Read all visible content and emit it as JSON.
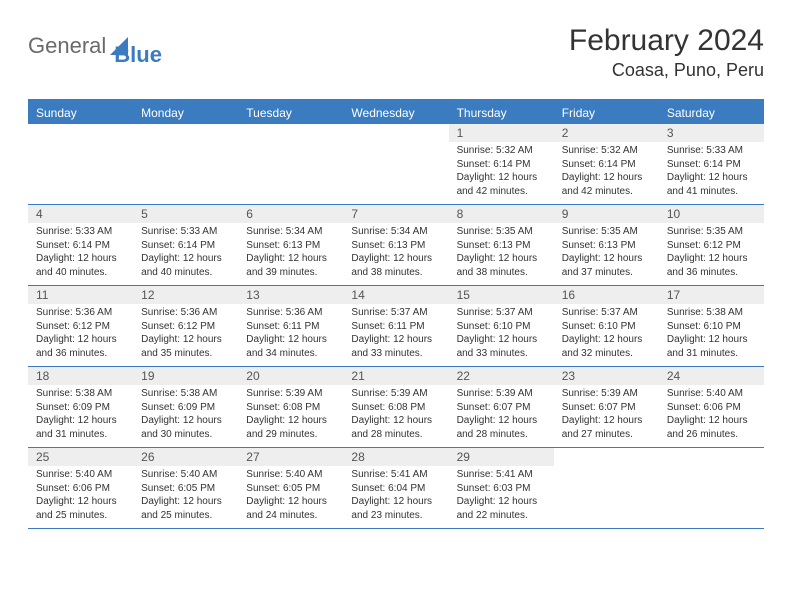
{
  "logo": {
    "part1": "General",
    "part2": "Blue"
  },
  "title": "February 2024",
  "location": "Coasa, Puno, Peru",
  "colors": {
    "accent": "#3b7bbf",
    "header_bg": "#3b7bbf",
    "header_text": "#ffffff",
    "daynum_bg": "#eeeeee",
    "text": "#333333",
    "logo_gray": "#6a6a6a"
  },
  "day_headers": [
    "Sunday",
    "Monday",
    "Tuesday",
    "Wednesday",
    "Thursday",
    "Friday",
    "Saturday"
  ],
  "weeks": [
    [
      {
        "n": "",
        "empty": true
      },
      {
        "n": "",
        "empty": true
      },
      {
        "n": "",
        "empty": true
      },
      {
        "n": "",
        "empty": true
      },
      {
        "n": "1",
        "sunrise": "Sunrise: 5:32 AM",
        "sunset": "Sunset: 6:14 PM",
        "day1": "Daylight: 12 hours",
        "day2": "and 42 minutes."
      },
      {
        "n": "2",
        "sunrise": "Sunrise: 5:32 AM",
        "sunset": "Sunset: 6:14 PM",
        "day1": "Daylight: 12 hours",
        "day2": "and 42 minutes."
      },
      {
        "n": "3",
        "sunrise": "Sunrise: 5:33 AM",
        "sunset": "Sunset: 6:14 PM",
        "day1": "Daylight: 12 hours",
        "day2": "and 41 minutes."
      }
    ],
    [
      {
        "n": "4",
        "sunrise": "Sunrise: 5:33 AM",
        "sunset": "Sunset: 6:14 PM",
        "day1": "Daylight: 12 hours",
        "day2": "and 40 minutes."
      },
      {
        "n": "5",
        "sunrise": "Sunrise: 5:33 AM",
        "sunset": "Sunset: 6:14 PM",
        "day1": "Daylight: 12 hours",
        "day2": "and 40 minutes."
      },
      {
        "n": "6",
        "sunrise": "Sunrise: 5:34 AM",
        "sunset": "Sunset: 6:13 PM",
        "day1": "Daylight: 12 hours",
        "day2": "and 39 minutes."
      },
      {
        "n": "7",
        "sunrise": "Sunrise: 5:34 AM",
        "sunset": "Sunset: 6:13 PM",
        "day1": "Daylight: 12 hours",
        "day2": "and 38 minutes."
      },
      {
        "n": "8",
        "sunrise": "Sunrise: 5:35 AM",
        "sunset": "Sunset: 6:13 PM",
        "day1": "Daylight: 12 hours",
        "day2": "and 38 minutes."
      },
      {
        "n": "9",
        "sunrise": "Sunrise: 5:35 AM",
        "sunset": "Sunset: 6:13 PM",
        "day1": "Daylight: 12 hours",
        "day2": "and 37 minutes."
      },
      {
        "n": "10",
        "sunrise": "Sunrise: 5:35 AM",
        "sunset": "Sunset: 6:12 PM",
        "day1": "Daylight: 12 hours",
        "day2": "and 36 minutes."
      }
    ],
    [
      {
        "n": "11",
        "sunrise": "Sunrise: 5:36 AM",
        "sunset": "Sunset: 6:12 PM",
        "day1": "Daylight: 12 hours",
        "day2": "and 36 minutes."
      },
      {
        "n": "12",
        "sunrise": "Sunrise: 5:36 AM",
        "sunset": "Sunset: 6:12 PM",
        "day1": "Daylight: 12 hours",
        "day2": "and 35 minutes."
      },
      {
        "n": "13",
        "sunrise": "Sunrise: 5:36 AM",
        "sunset": "Sunset: 6:11 PM",
        "day1": "Daylight: 12 hours",
        "day2": "and 34 minutes."
      },
      {
        "n": "14",
        "sunrise": "Sunrise: 5:37 AM",
        "sunset": "Sunset: 6:11 PM",
        "day1": "Daylight: 12 hours",
        "day2": "and 33 minutes."
      },
      {
        "n": "15",
        "sunrise": "Sunrise: 5:37 AM",
        "sunset": "Sunset: 6:10 PM",
        "day1": "Daylight: 12 hours",
        "day2": "and 33 minutes."
      },
      {
        "n": "16",
        "sunrise": "Sunrise: 5:37 AM",
        "sunset": "Sunset: 6:10 PM",
        "day1": "Daylight: 12 hours",
        "day2": "and 32 minutes."
      },
      {
        "n": "17",
        "sunrise": "Sunrise: 5:38 AM",
        "sunset": "Sunset: 6:10 PM",
        "day1": "Daylight: 12 hours",
        "day2": "and 31 minutes."
      }
    ],
    [
      {
        "n": "18",
        "sunrise": "Sunrise: 5:38 AM",
        "sunset": "Sunset: 6:09 PM",
        "day1": "Daylight: 12 hours",
        "day2": "and 31 minutes."
      },
      {
        "n": "19",
        "sunrise": "Sunrise: 5:38 AM",
        "sunset": "Sunset: 6:09 PM",
        "day1": "Daylight: 12 hours",
        "day2": "and 30 minutes."
      },
      {
        "n": "20",
        "sunrise": "Sunrise: 5:39 AM",
        "sunset": "Sunset: 6:08 PM",
        "day1": "Daylight: 12 hours",
        "day2": "and 29 minutes."
      },
      {
        "n": "21",
        "sunrise": "Sunrise: 5:39 AM",
        "sunset": "Sunset: 6:08 PM",
        "day1": "Daylight: 12 hours",
        "day2": "and 28 minutes."
      },
      {
        "n": "22",
        "sunrise": "Sunrise: 5:39 AM",
        "sunset": "Sunset: 6:07 PM",
        "day1": "Daylight: 12 hours",
        "day2": "and 28 minutes."
      },
      {
        "n": "23",
        "sunrise": "Sunrise: 5:39 AM",
        "sunset": "Sunset: 6:07 PM",
        "day1": "Daylight: 12 hours",
        "day2": "and 27 minutes."
      },
      {
        "n": "24",
        "sunrise": "Sunrise: 5:40 AM",
        "sunset": "Sunset: 6:06 PM",
        "day1": "Daylight: 12 hours",
        "day2": "and 26 minutes."
      }
    ],
    [
      {
        "n": "25",
        "sunrise": "Sunrise: 5:40 AM",
        "sunset": "Sunset: 6:06 PM",
        "day1": "Daylight: 12 hours",
        "day2": "and 25 minutes."
      },
      {
        "n": "26",
        "sunrise": "Sunrise: 5:40 AM",
        "sunset": "Sunset: 6:05 PM",
        "day1": "Daylight: 12 hours",
        "day2": "and 25 minutes."
      },
      {
        "n": "27",
        "sunrise": "Sunrise: 5:40 AM",
        "sunset": "Sunset: 6:05 PM",
        "day1": "Daylight: 12 hours",
        "day2": "and 24 minutes."
      },
      {
        "n": "28",
        "sunrise": "Sunrise: 5:41 AM",
        "sunset": "Sunset: 6:04 PM",
        "day1": "Daylight: 12 hours",
        "day2": "and 23 minutes."
      },
      {
        "n": "29",
        "sunrise": "Sunrise: 5:41 AM",
        "sunset": "Sunset: 6:03 PM",
        "day1": "Daylight: 12 hours",
        "day2": "and 22 minutes."
      },
      {
        "n": "",
        "empty": true
      },
      {
        "n": "",
        "empty": true
      }
    ]
  ]
}
